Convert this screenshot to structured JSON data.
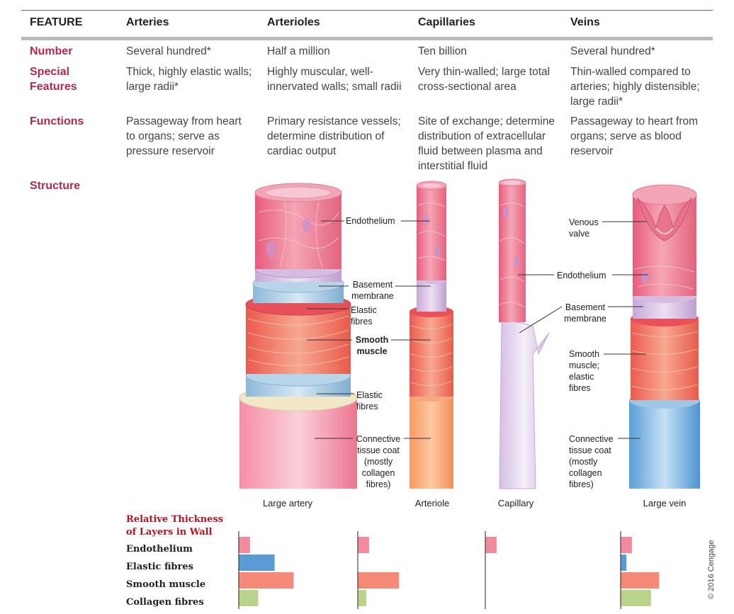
{
  "table": {
    "header": {
      "feature": "FEATURE",
      "arteries": "Arteries",
      "arterioles": "Arterioles",
      "capillaries": "Capillaries",
      "veins": "Veins"
    },
    "rows": {
      "number": {
        "label": "Number",
        "arteries": "Several hundred*",
        "arterioles": "Half a million",
        "capillaries": "Ten billion",
        "veins": "Several hundred*"
      },
      "special": {
        "label": "Special Features",
        "arteries": "Thick, highly elastic walls; large radii*",
        "arterioles": "Highly muscular, well-innervated walls; small radii",
        "capillaries": "Very thin-walled; large total cross-sectional area",
        "veins": "Thin-walled compared to arteries; highly distensible; large radii*"
      },
      "functions": {
        "label": "Functions",
        "arteries": "Passageway from heart to organs; serve as pressure reservoir",
        "arterioles": "Primary resistance vessels; determine distribution of cardiac output",
        "capillaries": "Site of exchange; determine distribution of extracellular fluid between plasma and interstitial fluid",
        "veins": "Passageway to heart from organs; serve as blood reservoir"
      },
      "structure": {
        "label": "Structure"
      }
    }
  },
  "diagram": {
    "labels": {
      "endothelium_artery": "Endothelium",
      "basement_membrane_artery": "Basement membrane",
      "elastic_fibres_1": "Elastic fibres",
      "smooth_muscle_artery": "Smooth muscle",
      "elastic_fibres_2": "Elastic fibres",
      "connective_tissue_artery": "Connective tissue coat (mostly collagen fibres)",
      "venous_valve": "Venous valve",
      "endothelium_cap": "Endothelium",
      "basement_membrane_vein": "Basement membrane",
      "smooth_muscle_vein": "Smooth muscle; elastic fibres",
      "connective_tissue_vein": "Connective tissue coat (mostly collagen fibres)"
    },
    "captions": {
      "large_artery": "Large artery",
      "arteriole": "Arteriole",
      "capillary": "Capillary",
      "large_vein": "Large vein"
    }
  },
  "thickness": {
    "title": "Relative Thickness of Layers in Wall",
    "layers": [
      "Endothelium",
      "Elastic fibres",
      "Smooth muscle",
      "Collagen fibres"
    ],
    "colors": [
      "#f28b9b",
      "#5b9bd5",
      "#f58a78",
      "#b9d48a"
    ],
    "vessels": [
      {
        "name": "Large artery",
        "values": [
          2,
          6.5,
          10,
          3.5
        ]
      },
      {
        "name": "Arteriole",
        "values": [
          2,
          0,
          7.5,
          1.5
        ]
      },
      {
        "name": "Capillary",
        "values": [
          2,
          0,
          0,
          0
        ]
      },
      {
        "name": "Large vein",
        "values": [
          2,
          1,
          7,
          5.5
        ]
      }
    ]
  },
  "copyright": "© 2016 Cengage"
}
